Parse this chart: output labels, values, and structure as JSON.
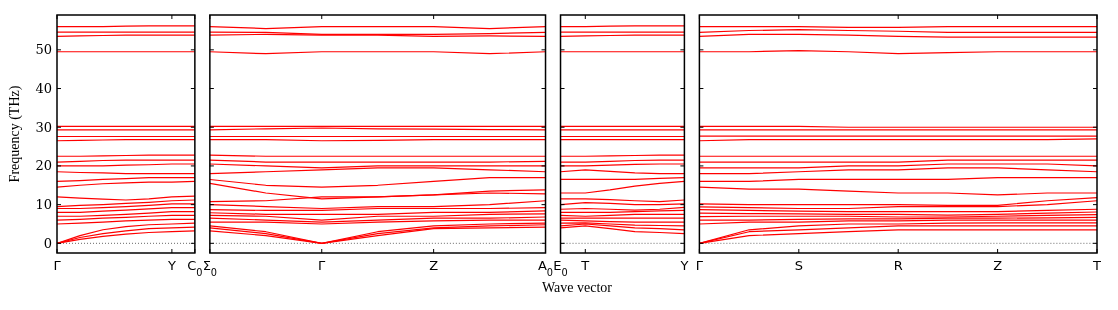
{
  "chart_data": [
    {
      "type": "line",
      "ylabel": "Frequency (THz)",
      "color": "#ff0000",
      "ylim": [
        -2.5,
        59
      ],
      "yticks": [
        0,
        10,
        20,
        30,
        40,
        50
      ],
      "categories": [
        "Γ",
        null,
        null,
        null,
        null,
        "Y",
        "C$_{0}$"
      ],
      "ref_lines": [
        {
          "axis": "y",
          "value": 0,
          "line_style": "dotted",
          "color": "#000000"
        }
      ],
      "series": [
        {
          "values": [
            0,
            1,
            1.8,
            2.4,
            2.8,
            3,
            3.2
          ]
        },
        {
          "values": [
            0,
            1.5,
            2.5,
            3.2,
            3.8,
            4,
            4.2
          ]
        },
        {
          "values": [
            0,
            2,
            3.5,
            4.3,
            4.8,
            5,
            5.2
          ]
        },
        {
          "values": [
            5,
            5.2,
            5.5,
            5.8,
            6,
            6.2,
            6.2
          ]
        },
        {
          "values": [
            6,
            6.2,
            6.5,
            6.7,
            7,
            7.2,
            7.2
          ]
        },
        {
          "values": [
            7,
            7,
            7.2,
            7.5,
            7.8,
            8.2,
            8.2
          ]
        },
        {
          "values": [
            8,
            8,
            8.3,
            8.6,
            8.9,
            9.2,
            9.2
          ]
        },
        {
          "values": [
            9,
            9,
            9.2,
            9.5,
            9.8,
            10.2,
            10.2
          ]
        },
        {
          "values": [
            9.5,
            9.8,
            10,
            10.3,
            10.6,
            11,
            11.2
          ]
        },
        {
          "values": [
            12,
            11.7,
            11.4,
            11.2,
            11.5,
            12,
            12.2
          ]
        },
        {
          "values": [
            14.5,
            15,
            15.4,
            15.6,
            15.8,
            15.8,
            16
          ]
        },
        {
          "values": [
            16,
            16.2,
            16.5,
            16.7,
            17,
            17,
            17
          ]
        },
        {
          "values": [
            18.5,
            18.3,
            18.2,
            18,
            18,
            18,
            18
          ]
        },
        {
          "values": [
            20,
            20,
            20,
            20.2,
            20.3,
            20.5,
            20.5
          ]
        },
        {
          "values": [
            21,
            21.2,
            21.4,
            21.5,
            21.5,
            21.5,
            21.5
          ]
        },
        {
          "values": [
            22.5,
            22.5,
            22.6,
            22.7,
            22.8,
            22.8,
            22.8
          ]
        },
        {
          "values": [
            26.5,
            26.6,
            26.7,
            26.8,
            26.8,
            26.8,
            26.8
          ]
        },
        {
          "values": [
            27.6,
            27.6,
            27.6,
            27.6,
            27.6,
            27.6,
            27.6
          ]
        },
        {
          "values": [
            29.3,
            29.3,
            29.3,
            29.3,
            29.3,
            29.3,
            29.3
          ]
        },
        {
          "values": [
            30.2,
            30.2,
            30.2,
            30.2,
            30.2,
            30.2,
            30.2
          ]
        },
        {
          "values": [
            49.5,
            49.5,
            49.5,
            49.5,
            49.5,
            49.5,
            49.5
          ]
        },
        {
          "values": [
            53.5,
            53.6,
            53.7,
            53.8,
            53.8,
            53.8,
            53.8
          ]
        },
        {
          "values": [
            54.6,
            54.6,
            54.6,
            54.6,
            54.6,
            54.6,
            54.6
          ]
        },
        {
          "values": [
            56,
            56,
            56,
            56.1,
            56.2,
            56.2,
            56.2
          ]
        }
      ]
    },
    {
      "type": "line",
      "color": "#ff0000",
      "tick_labels": "x",
      "ylim": [
        -2.5,
        59
      ],
      "yticks": [
        {
          "value": 0,
          "label": null
        },
        {
          "value": 10,
          "label": null
        },
        {
          "value": 20,
          "label": null
        },
        {
          "value": 30,
          "label": null
        },
        {
          "value": 40,
          "label": null
        },
        {
          "value": 50,
          "label": null
        }
      ],
      "categories": [
        "Σ$_{0}$",
        null,
        "Γ",
        null,
        "Z",
        null,
        "A$_{0}$"
      ],
      "ref_lines": [
        {
          "axis": "y",
          "value": 0,
          "line_style": "dotted",
          "color": "#000000"
        }
      ],
      "series": [
        {
          "values": [
            3.2,
            2,
            0,
            2,
            3.8,
            4,
            4.2
          ]
        },
        {
          "values": [
            4,
            2.5,
            0,
            2.5,
            4,
            4.5,
            4.8
          ]
        },
        {
          "values": [
            4.5,
            3,
            0,
            3,
            4.5,
            5,
            5.2
          ]
        },
        {
          "values": [
            5.5,
            5.5,
            5,
            5.5,
            5.8,
            6,
            6
          ]
        },
        {
          "values": [
            6.5,
            6,
            5.5,
            6,
            6.5,
            6.5,
            6.8
          ]
        },
        {
          "values": [
            7.2,
            7,
            6,
            7,
            7,
            7.5,
            7.6
          ]
        },
        {
          "values": [
            7.9,
            7.5,
            7.5,
            7.5,
            8,
            8,
            8.4
          ]
        },
        {
          "values": [
            8.7,
            8.5,
            8.5,
            9,
            9,
            9,
            9.2
          ]
        },
        {
          "values": [
            10,
            9.5,
            9,
            9.5,
            9.5,
            10,
            11
          ]
        },
        {
          "values": [
            10.8,
            11,
            12,
            12,
            12.5,
            13.5,
            13.8
          ]
        },
        {
          "values": [
            15.5,
            13,
            11.5,
            12,
            12.5,
            13,
            12.8
          ]
        },
        {
          "values": [
            16.5,
            15,
            14.5,
            15,
            16,
            17,
            17
          ]
        },
        {
          "values": [
            18,
            18.5,
            19,
            19.5,
            19.5,
            19,
            18.5
          ]
        },
        {
          "values": [
            20.5,
            20,
            19.5,
            20,
            20,
            20,
            20
          ]
        },
        {
          "values": [
            21.5,
            21,
            21,
            21,
            21,
            21,
            21.2
          ]
        },
        {
          "values": [
            22.8,
            22.5,
            22.5,
            22.5,
            22.5,
            22.5,
            22.5
          ]
        },
        {
          "values": [
            26.8,
            26.8,
            26.5,
            26.6,
            26.8,
            26.8,
            26.8
          ]
        },
        {
          "values": [
            27.6,
            27.6,
            27.6,
            27.6,
            27.6,
            27.6,
            27.6
          ]
        },
        {
          "values": [
            29.3,
            29.6,
            29.8,
            29.6,
            29.5,
            29.4,
            29.3
          ]
        },
        {
          "values": [
            30.2,
            30.2,
            30.2,
            30.2,
            30.2,
            30.2,
            30.2
          ]
        },
        {
          "values": [
            49.5,
            49,
            49.5,
            49.5,
            49.5,
            49,
            49.5
          ]
        },
        {
          "values": [
            53.8,
            54,
            53.8,
            53.8,
            53.5,
            53.6,
            53.5
          ]
        },
        {
          "values": [
            54.6,
            54.5,
            54,
            54,
            54,
            54.2,
            54.5
          ]
        },
        {
          "values": [
            56,
            55.5,
            56,
            56,
            56,
            55.5,
            56
          ]
        }
      ]
    },
    {
      "type": "line",
      "color": "#ff0000",
      "tick_labels": "x",
      "xlabel": "Wave vector",
      "ylim": [
        -2.5,
        59
      ],
      "yticks": [
        {
          "value": 0,
          "label": null
        },
        {
          "value": 10,
          "label": null
        },
        {
          "value": 20,
          "label": null
        },
        {
          "value": 30,
          "label": null
        },
        {
          "value": 40,
          "label": null
        },
        {
          "value": 50,
          "label": null
        }
      ],
      "categories": [
        "E$_{0}$",
        "T",
        null,
        null,
        null,
        "Y"
      ],
      "ref_lines": [
        {
          "axis": "y",
          "value": 0,
          "line_style": "dotted",
          "color": "#000000"
        }
      ],
      "series": [
        {
          "values": [
            4,
            4.5,
            3.8,
            3,
            2.8,
            2.5
          ]
        },
        {
          "values": [
            4.5,
            5,
            4.5,
            4,
            3.8,
            3.5
          ]
        },
        {
          "values": [
            5.2,
            5.3,
            5,
            4.7,
            4.6,
            4.5
          ]
        },
        {
          "values": [
            6,
            5.8,
            5.6,
            5.5,
            5.5,
            5.5
          ]
        },
        {
          "values": [
            6.5,
            6.5,
            6.5,
            6.5,
            6.5,
            6.5
          ]
        },
        {
          "values": [
            7.2,
            7,
            7.2,
            7.5,
            7.5,
            7.5
          ]
        },
        {
          "values": [
            8,
            8,
            8,
            8.2,
            8.4,
            8.5
          ]
        },
        {
          "values": [
            8.8,
            9,
            8.8,
            8.6,
            8.8,
            9.3
          ]
        },
        {
          "values": [
            10,
            10.5,
            10.3,
            10,
            10,
            10.2
          ]
        },
        {
          "values": [
            11.5,
            11.5,
            11.3,
            11,
            10.8,
            11.2
          ]
        },
        {
          "values": [
            13,
            13,
            13.8,
            14.8,
            15.5,
            16
          ]
        },
        {
          "values": [
            16.5,
            16.5,
            16.5,
            16.5,
            16.8,
            17
          ]
        },
        {
          "values": [
            18.5,
            19,
            18.6,
            18.2,
            18,
            18
          ]
        },
        {
          "values": [
            20,
            20,
            20.2,
            20.4,
            20.5,
            20.5
          ]
        },
        {
          "values": [
            21,
            21,
            21.2,
            21.4,
            21.5,
            21.5
          ]
        },
        {
          "values": [
            22.5,
            22.5,
            22.6,
            22.7,
            22.8,
            22.8
          ]
        },
        {
          "values": [
            26.8,
            26.8,
            26.8,
            26.8,
            26.8,
            26.8
          ]
        },
        {
          "values": [
            27.6,
            27.6,
            27.6,
            27.6,
            27.6,
            27.6
          ]
        },
        {
          "values": [
            29.3,
            29.3,
            29.3,
            29.3,
            29.3,
            29.3
          ]
        },
        {
          "values": [
            30.2,
            30.2,
            30.2,
            30.2,
            30.2,
            30.2
          ]
        },
        {
          "values": [
            49.5,
            49.5,
            49.5,
            49.5,
            49.5,
            49.5
          ]
        },
        {
          "values": [
            53.5,
            53.6,
            53.7,
            53.8,
            53.8,
            53.8
          ]
        },
        {
          "values": [
            54.6,
            54.6,
            54.6,
            54.6,
            54.6,
            54.6
          ]
        },
        {
          "values": [
            56,
            56,
            56.1,
            56.2,
            56.2,
            56.2
          ]
        }
      ]
    },
    {
      "type": "line",
      "color": "#ff0000",
      "tick_labels": "x",
      "ylim": [
        -2.5,
        59
      ],
      "yticks": [
        {
          "value": 0,
          "label": null
        },
        {
          "value": 10,
          "label": null
        },
        {
          "value": 20,
          "label": null
        },
        {
          "value": 30,
          "label": null
        },
        {
          "value": 40,
          "label": null
        },
        {
          "value": 50,
          "label": null
        }
      ],
      "categories": [
        "Γ",
        null,
        "S",
        null,
        "R",
        null,
        "Z",
        null,
        "T"
      ],
      "ref_lines": [
        {
          "axis": "y",
          "value": 0,
          "line_style": "dotted",
          "color": "#000000"
        }
      ],
      "series": [
        {
          "values": [
            0,
            2,
            2.5,
            3,
            3.5,
            3.5,
            3.5,
            3.5,
            3.5
          ]
        },
        {
          "values": [
            0,
            3,
            3.5,
            4,
            4.5,
            4.5,
            4.5,
            4.5,
            4.5
          ]
        },
        {
          "values": [
            0,
            3.5,
            4.5,
            5,
            5,
            5.2,
            5.3,
            5.3,
            5.3
          ]
        },
        {
          "values": [
            5,
            5.5,
            5.5,
            5.8,
            5.8,
            6,
            6,
            6,
            6
          ]
        },
        {
          "values": [
            6,
            6,
            6.2,
            6.3,
            6.3,
            6.5,
            6.5,
            6.6,
            6.7
          ]
        },
        {
          "values": [
            6.9,
            7,
            7,
            7,
            6.8,
            6.8,
            7,
            7.2,
            7.4
          ]
        },
        {
          "values": [
            7.8,
            7.7,
            7.6,
            7.5,
            7.5,
            7.3,
            7.5,
            7.8,
            8.1
          ]
        },
        {
          "values": [
            8.7,
            8.5,
            8.3,
            8.2,
            8.2,
            8.2,
            8.2,
            8.5,
            8.8
          ]
        },
        {
          "values": [
            9.4,
            9.2,
            9,
            9,
            9.5,
            9.5,
            9.5,
            10,
            11
          ]
        },
        {
          "values": [
            10.2,
            10,
            10,
            10,
            10,
            9.8,
            9.8,
            11,
            11.8
          ]
        },
        {
          "values": [
            14.5,
            14,
            14,
            13.5,
            13,
            13,
            12.5,
            13,
            13
          ]
        },
        {
          "values": [
            16,
            16,
            16.5,
            16.5,
            16.5,
            16.5,
            17,
            17,
            17
          ]
        },
        {
          "values": [
            18,
            18,
            18.5,
            19,
            19,
            19.5,
            19.5,
            19,
            18.5
          ]
        },
        {
          "values": [
            19.5,
            19.5,
            19.5,
            20,
            20,
            20.5,
            20.5,
            20.5,
            20
          ]
        },
        {
          "values": [
            21,
            21,
            21,
            21,
            21,
            21.5,
            21.5,
            21.5,
            21.5
          ]
        },
        {
          "values": [
            22.5,
            22.5,
            22.5,
            22.5,
            22.5,
            22.5,
            22.5,
            22.5,
            22.5
          ]
        },
        {
          "values": [
            26.5,
            26.8,
            26.8,
            26.8,
            26.8,
            26.8,
            26.8,
            26.8,
            27
          ]
        },
        {
          "values": [
            27.7,
            27.7,
            27.7,
            27.7,
            27.7,
            27.7,
            27.7,
            27.7,
            27.7
          ]
        },
        {
          "values": [
            29.3,
            29.3,
            29.3,
            29.3,
            29.3,
            29.3,
            29.3,
            29.3,
            29.3
          ]
        },
        {
          "values": [
            30.2,
            30.2,
            30.2,
            30,
            30,
            30,
            30,
            30,
            30
          ]
        },
        {
          "values": [
            49.5,
            49.5,
            49.8,
            49.5,
            49,
            49.3,
            49.5,
            49.5,
            49.5
          ]
        },
        {
          "values": [
            53.5,
            54,
            54,
            53.8,
            53.5,
            53.3,
            53.3,
            53.3,
            53.3
          ]
        },
        {
          "values": [
            54.5,
            55,
            55.2,
            55,
            54.8,
            54.5,
            54.5,
            54.5,
            54.5
          ]
        },
        {
          "values": [
            56,
            56,
            56,
            55.8,
            55.8,
            56,
            56,
            56,
            56
          ]
        }
      ]
    }
  ]
}
